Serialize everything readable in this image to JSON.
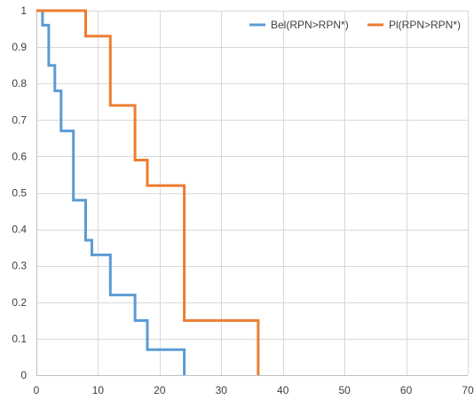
{
  "chart_data": {
    "type": "line",
    "step": true,
    "title": "",
    "xlabel": "",
    "ylabel": "",
    "xlim": [
      0,
      70
    ],
    "ylim": [
      0,
      1
    ],
    "x_ticks": [
      0,
      10,
      20,
      30,
      40,
      50,
      60,
      70
    ],
    "y_ticks": [
      0,
      0.1,
      0.2,
      0.3,
      0.4,
      0.5,
      0.6,
      0.7,
      0.8,
      0.9,
      1
    ],
    "grid": true,
    "legend_position": "top-right",
    "series": [
      {
        "name": "Bel(RPN>RPN*)",
        "color": "#5b9bd5",
        "x": [
          0,
          1,
          1,
          2,
          2,
          3,
          3,
          4,
          4,
          6,
          6,
          8,
          8,
          9,
          9,
          12,
          12,
          16,
          16,
          18,
          18,
          24,
          24
        ],
        "y": [
          1,
          1,
          0.96,
          0.96,
          0.85,
          0.85,
          0.78,
          0.78,
          0.67,
          0.67,
          0.48,
          0.48,
          0.37,
          0.37,
          0.33,
          0.33,
          0.22,
          0.22,
          0.15,
          0.15,
          0.07,
          0.07,
          0
        ]
      },
      {
        "name": "Pl(RPN>RPN*)",
        "color": "#ed7d31",
        "x": [
          0,
          8,
          8,
          12,
          12,
          16,
          16,
          18,
          18,
          24,
          24,
          36,
          36
        ],
        "y": [
          1,
          1,
          0.93,
          0.93,
          0.74,
          0.74,
          0.59,
          0.59,
          0.52,
          0.52,
          0.15,
          0.15,
          0
        ]
      }
    ]
  }
}
